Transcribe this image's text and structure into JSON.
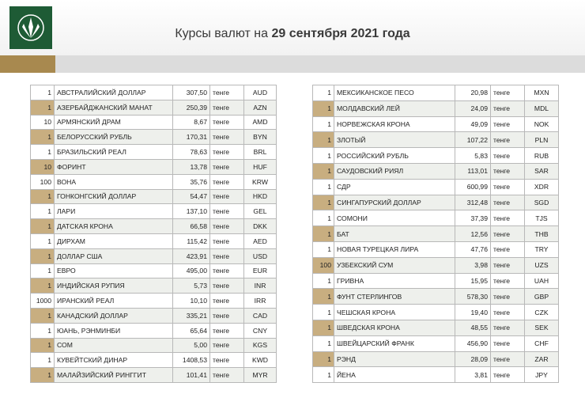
{
  "header": {
    "title_lead": "Курсы валют на",
    "title_date": "29 сентября 2021 года"
  },
  "tables": [
    {
      "rows": [
        [
          1,
          "АВСТРАЛИЙСКИЙ ДОЛЛАР",
          "307,50",
          "тенге",
          "AUD"
        ],
        [
          1,
          "АЗЕРБАЙДЖАНСКИЙ МАНАТ",
          "250,39",
          "тенге",
          "AZN"
        ],
        [
          10,
          "АРМЯНСКИЙ ДРАМ",
          "8,67",
          "тенге",
          "AMD"
        ],
        [
          1,
          "БЕЛОРУССКИЙ РУБЛЬ",
          "170,31",
          "тенге",
          "BYN"
        ],
        [
          1,
          "БРАЗИЛЬСКИЙ РЕАЛ",
          "78,63",
          "тенге",
          "BRL"
        ],
        [
          10,
          "ФОРИНТ",
          "13,78",
          "тенге",
          "HUF"
        ],
        [
          100,
          "ВОНА",
          "35,76",
          "тенге",
          "KRW"
        ],
        [
          1,
          "ГОНКОНГСКИЙ ДОЛЛАР",
          "54,47",
          "тенге",
          "HKD"
        ],
        [
          1,
          "ЛАРИ",
          "137,10",
          "тенге",
          "GEL"
        ],
        [
          1,
          "ДАТСКАЯ КРОНА",
          "66,58",
          "тенге",
          "DKK"
        ],
        [
          1,
          "ДИРХАМ",
          "115,42",
          "тенге",
          "AED"
        ],
        [
          1,
          "ДОЛЛАР США",
          "423,91",
          "тенге",
          "USD"
        ],
        [
          1,
          "ЕВРО",
          "495,00",
          "тенге",
          "EUR"
        ],
        [
          1,
          "ИНДИЙСКАЯ РУПИЯ",
          "5,73",
          "тенге",
          "INR"
        ],
        [
          1000,
          "ИРАНСКИЙ РЕАЛ",
          "10,10",
          "тенге",
          "IRR"
        ],
        [
          1,
          "КАНАДСКИЙ ДОЛЛАР",
          "335,21",
          "тенге",
          "CAD"
        ],
        [
          1,
          "ЮАНЬ, РЭНМИНБИ",
          "65,64",
          "тенге",
          "CNY"
        ],
        [
          1,
          "СОМ",
          "5,00",
          "тенге",
          "KGS"
        ],
        [
          1,
          "КУВЕЙТСКИЙ ДИНАР",
          "1408,53",
          "тенге",
          "KWD"
        ],
        [
          1,
          "МАЛАЙЗИЙСКИЙ РИНГГИТ",
          "101,41",
          "тенге",
          "MYR"
        ]
      ]
    },
    {
      "rows": [
        [
          1,
          "МЕКСИКАНСКОЕ ПЕСО",
          "20,98",
          "тенге",
          "MXN"
        ],
        [
          1,
          "МОЛДАВСКИЙ ЛЕЙ",
          "24,09",
          "тенге",
          "MDL"
        ],
        [
          1,
          "НОРВЕЖСКАЯ КРОНА",
          "49,09",
          "тенге",
          "NOK"
        ],
        [
          1,
          "ЗЛОТЫЙ",
          "107,22",
          "тенге",
          "PLN"
        ],
        [
          1,
          "РОССИЙСКИЙ РУБЛЬ",
          "5,83",
          "тенге",
          "RUB"
        ],
        [
          1,
          "САУДОВСКИЙ РИЯЛ",
          "113,01",
          "тенге",
          "SAR"
        ],
        [
          1,
          "СДР",
          "600,99",
          "тенге",
          "XDR"
        ],
        [
          1,
          "СИНГАПУРСКИЙ ДОЛЛАР",
          "312,48",
          "тенге",
          "SGD"
        ],
        [
          1,
          "СОМОНИ",
          "37,39",
          "тенге",
          "TJS"
        ],
        [
          1,
          "БАТ",
          "12,56",
          "тенге",
          "THB"
        ],
        [
          1,
          "НОВАЯ ТУРЕЦКАЯ ЛИРА",
          "47,76",
          "тенге",
          "TRY"
        ],
        [
          100,
          "УЗБЕКСКИЙ СУМ",
          "3,98",
          "тенге",
          "UZS"
        ],
        [
          1,
          "ГРИВНА",
          "15,95",
          "тенге",
          "UAH"
        ],
        [
          1,
          "ФУНТ СТЕРЛИНГОВ",
          "578,30",
          "тенге",
          "GBP"
        ],
        [
          1,
          "ЧЕШСКАЯ КРОНА",
          "19,40",
          "тенге",
          "CZK"
        ],
        [
          1,
          "ШВЕДСКАЯ КРОНА",
          "48,55",
          "тенге",
          "SEK"
        ],
        [
          1,
          "ШВЕЙЦАРСКИЙ ФРАНК",
          "456,90",
          "тенге",
          "CHF"
        ],
        [
          1,
          "РЭНД",
          "28,09",
          "тенге",
          "ZAR"
        ],
        [
          1,
          "ЙЕНА",
          "3,81",
          "тенге",
          "JPY"
        ]
      ]
    }
  ]
}
